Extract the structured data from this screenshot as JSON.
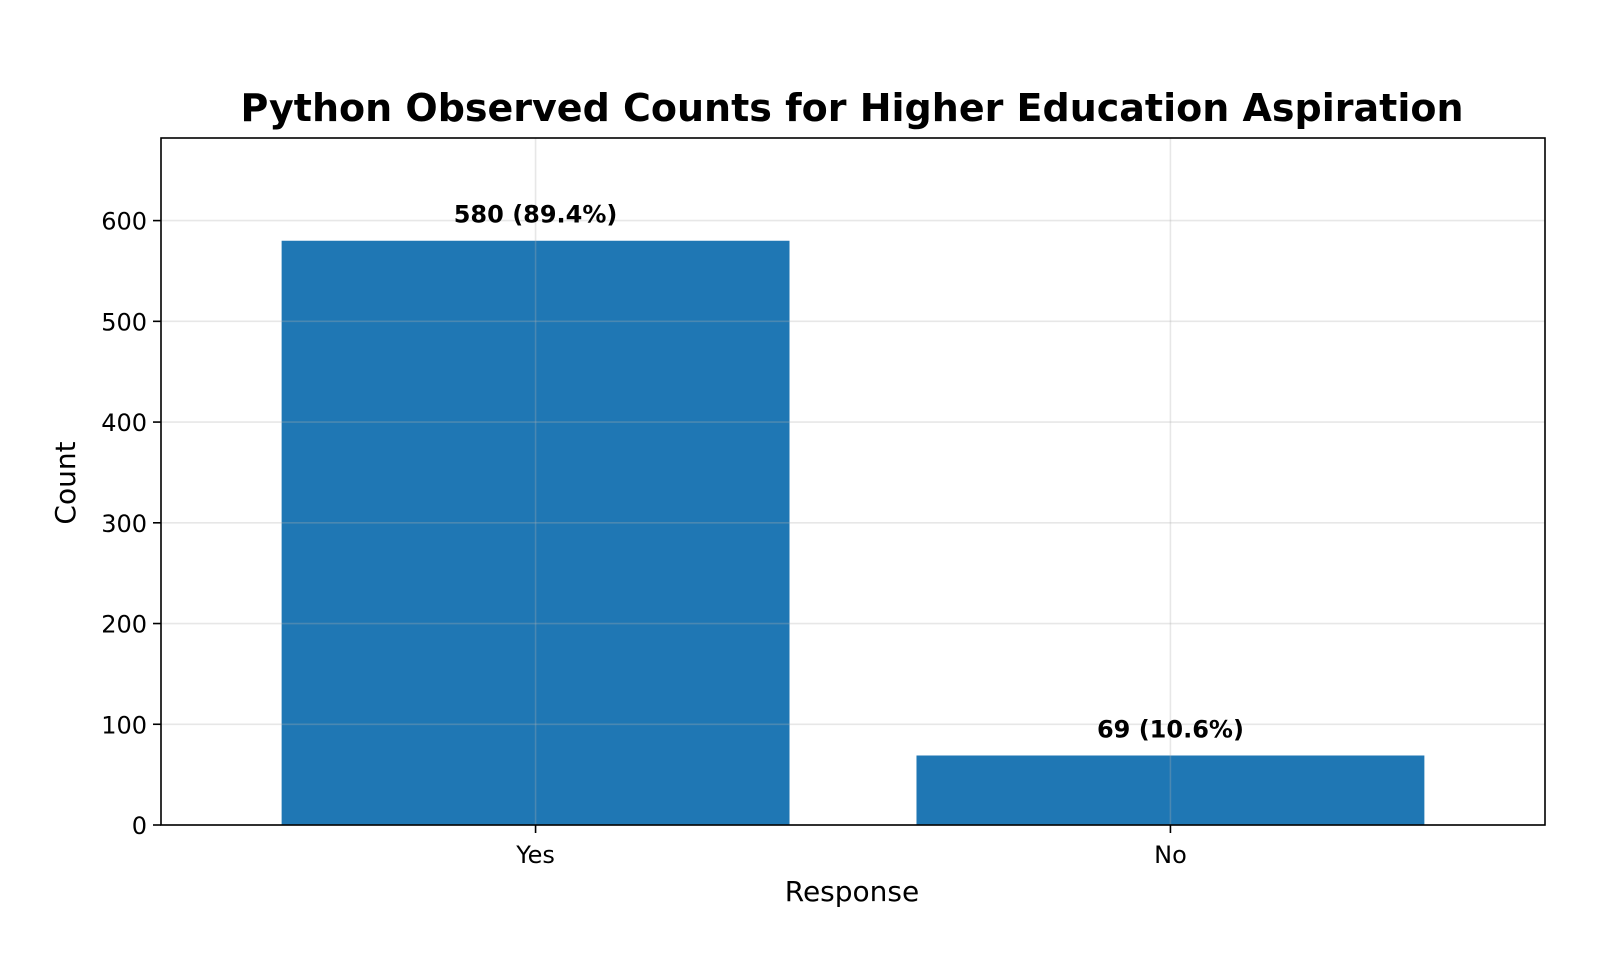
{
  "chart_data": {
    "type": "bar",
    "title": "Python Observed Counts for Higher Education Aspiration",
    "xlabel": "Response",
    "ylabel": "Count",
    "categories": [
      "Yes",
      "No"
    ],
    "values": [
      580,
      69
    ],
    "data_labels": [
      "580 (89.4%)",
      "69 (10.6%)"
    ],
    "ylim": [
      0,
      682
    ],
    "yticks": [
      0,
      100,
      200,
      300,
      400,
      500,
      600
    ],
    "ytick_labels": [
      "0",
      "100",
      "200",
      "300",
      "400",
      "500",
      "600"
    ],
    "grid": true,
    "bar_color": "#1f77b4"
  }
}
